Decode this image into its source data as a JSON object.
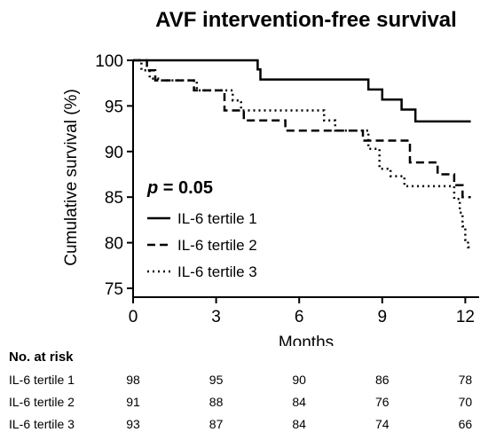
{
  "chart_data": {
    "type": "line",
    "title": "AVF intervention-free survival",
    "xlabel": "Months",
    "ylabel": "Cumulative survival (%)",
    "xlim": [
      0,
      12.5
    ],
    "ylim": [
      75,
      100
    ],
    "xticks": [
      0,
      3,
      6,
      9,
      12
    ],
    "yticks": [
      75,
      80,
      85,
      90,
      95,
      100
    ],
    "grid": false,
    "legend_position": "bottom-left",
    "annotation": {
      "prefix": "p",
      "text": " = 0.05"
    },
    "series": [
      {
        "name": "IL-6 tertile 1",
        "style": "solid",
        "x": [
          0,
          4.5,
          4.5,
          4.6,
          4.6,
          8.5,
          8.5,
          9.0,
          9.0,
          9.7,
          9.7,
          10.2,
          10.2,
          12.2
        ],
        "y": [
          100,
          100,
          99,
          99,
          97.9,
          97.9,
          96.8,
          96.8,
          95.7,
          95.7,
          94.6,
          94.6,
          93.3,
          93.3
        ]
      },
      {
        "name": "IL-6 tertile 2",
        "style": "dashed",
        "x": [
          0,
          0.5,
          0.5,
          0.8,
          0.8,
          2.2,
          2.2,
          3.3,
          3.3,
          4.0,
          4.0,
          5.5,
          5.5,
          8.3,
          8.3,
          10.0,
          10.0,
          11.0,
          11.0,
          11.6,
          11.6,
          11.9,
          11.9,
          12.2
        ],
        "y": [
          100,
          100,
          98.9,
          98.9,
          97.8,
          97.8,
          96.7,
          96.7,
          94.5,
          94.5,
          93.4,
          93.4,
          92.3,
          92.3,
          91.2,
          91.2,
          88.8,
          88.8,
          87.5,
          87.5,
          86.3,
          86.3,
          85.0,
          85.0
        ]
      },
      {
        "name": "IL-6 tertile 3",
        "style": "dotted",
        "x": [
          0,
          0.3,
          0.3,
          0.6,
          0.6,
          0.9,
          0.9,
          2.3,
          2.3,
          3.6,
          3.6,
          3.9,
          3.9,
          6.9,
          6.9,
          7.3,
          7.3,
          8.5,
          8.5,
          8.9,
          8.9,
          9.3,
          9.3,
          9.8,
          9.8,
          11.6,
          11.6,
          11.8,
          11.8,
          11.9,
          11.9,
          12.0,
          12.0,
          12.1,
          12.1,
          12.2
        ],
        "y": [
          100,
          100,
          98.9,
          98.9,
          98.0,
          98.0,
          97.8,
          97.8,
          96.7,
          96.7,
          95.6,
          95.6,
          94.5,
          94.5,
          93.4,
          93.4,
          92.3,
          92.3,
          90.3,
          90.3,
          88.1,
          88.1,
          87.3,
          87.3,
          86.2,
          86.2,
          84.8,
          84.8,
          83.3,
          83.3,
          81.8,
          81.8,
          80.3,
          80.3,
          79.5,
          79.5
        ]
      }
    ]
  },
  "risk_table": {
    "title": "No. at risk",
    "columns": [
      0,
      3,
      6,
      9,
      12
    ],
    "rows": [
      {
        "label": "IL-6 tertile 1",
        "values": [
          "98",
          "95",
          "90",
          "86",
          "78"
        ]
      },
      {
        "label": "IL-6 tertile 2",
        "values": [
          "91",
          "88",
          "84",
          "76",
          "70"
        ]
      },
      {
        "label": "IL-6 tertile 3",
        "values": [
          "93",
          "87",
          "84",
          "74",
          "66"
        ]
      }
    ]
  }
}
